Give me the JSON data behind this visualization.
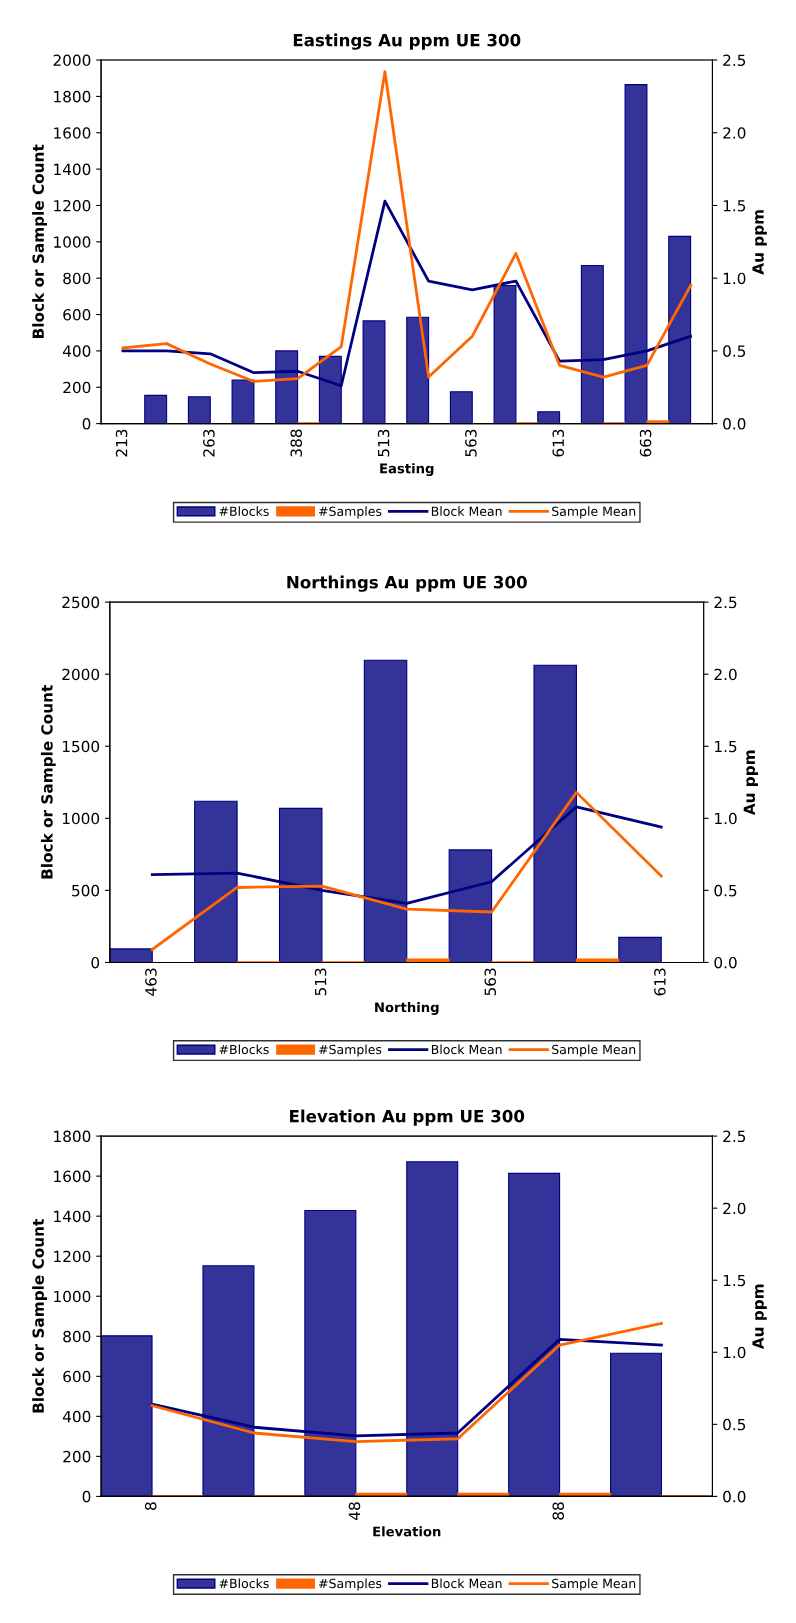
{
  "chart_data": [
    {
      "type": "bar",
      "title": "Eastings Au ppm UE 300",
      "xlabel": "Easting",
      "ylabel": "Block or Sample Count",
      "y2label": "Au ppm",
      "categories": [
        "213",
        null,
        "263",
        null,
        "388",
        null,
        "513",
        null,
        "563",
        null,
        "613",
        null,
        "663",
        null
      ],
      "series": [
        {
          "name": "#Blocks",
          "color": "#333399",
          "values": [
            null,
            155,
            148,
            240,
            400,
            370,
            565,
            585,
            175,
            760,
            65,
            870,
            1865,
            1030
          ]
        },
        {
          "name": "#Samples",
          "color": "#ff6600",
          "values": [
            0,
            0,
            0,
            0,
            5,
            0,
            0,
            0,
            0,
            5,
            0,
            5,
            15,
            null
          ]
        },
        {
          "name": "Block Mean",
          "type": "line",
          "axis": "y2",
          "color": "#000080",
          "values": [
            0.5,
            0.5,
            0.48,
            0.35,
            0.36,
            0.26,
            1.53,
            0.98,
            0.92,
            0.98,
            0.43,
            0.44,
            0.5,
            0.6
          ]
        },
        {
          "name": "Sample Mean",
          "type": "line",
          "axis": "y2",
          "color": "#ff6600",
          "values": [
            0.52,
            0.55,
            0.41,
            0.29,
            0.31,
            0.53,
            2.42,
            0.32,
            0.6,
            1.17,
            0.4,
            0.32,
            0.4,
            0.95
          ]
        }
      ],
      "ylim": [
        0,
        2000
      ],
      "yticks": [
        0,
        200,
        400,
        600,
        800,
        1000,
        1200,
        1400,
        1600,
        1800,
        2000
      ],
      "y2lim": [
        0,
        2.5
      ],
      "y2ticks": [
        {
          "value": 0,
          "label": "0.0"
        },
        {
          "value": 0.5,
          "label": "0.5"
        },
        {
          "value": 1,
          "label": "1.0"
        },
        {
          "value": 1.5,
          "label": "1.5"
        },
        {
          "value": 2,
          "label": "2.0"
        },
        {
          "value": 2.5,
          "label": "2.5"
        }
      ],
      "legend": "bottom",
      "grid": false
    },
    {
      "type": "bar",
      "title": "Northings Au ppm UE 300",
      "xlabel": "Northing",
      "ylabel": "Block or Sample Count",
      "y2label": "Au ppm",
      "categories": [
        "463",
        null,
        "513",
        null,
        "563",
        null,
        "613"
      ],
      "series": [
        {
          "name": "#Blocks",
          "color": "#333399",
          "values": [
            94,
            1118,
            1069,
            2097,
            781,
            2062,
            174
          ]
        },
        {
          "name": "#Samples",
          "color": "#ff6600",
          "values": [
            0,
            5,
            5,
            24,
            5,
            24,
            0
          ]
        },
        {
          "name": "Block Mean",
          "type": "line",
          "axis": "y2",
          "color": "#000080",
          "values": [
            0.61,
            0.62,
            0.5,
            0.41,
            0.56,
            1.08,
            0.94
          ]
        },
        {
          "name": "Sample Mean",
          "type": "line",
          "axis": "y2",
          "color": "#ff6600",
          "values": [
            0.09,
            0.52,
            0.53,
            0.37,
            0.35,
            1.18,
            0.6
          ]
        }
      ],
      "ylim": [
        0,
        2500
      ],
      "yticks": [
        0,
        500,
        1000,
        1500,
        2000,
        2500
      ],
      "y2lim": [
        0,
        2.5
      ],
      "y2ticks": [
        {
          "value": 0,
          "label": "0.0"
        },
        {
          "value": 0.5,
          "label": "0.5"
        },
        {
          "value": 1,
          "label": "1.0"
        },
        {
          "value": 1.5,
          "label": "1.5"
        },
        {
          "value": 2,
          "label": "2.0"
        },
        {
          "value": 2.5,
          "label": "2.5"
        }
      ],
      "legend": "bottom",
      "grid": false
    },
    {
      "type": "bar",
      "title": "Elevation Au ppm UE 300",
      "xlabel": "Elevation",
      "ylabel": "Block or Sample Count",
      "y2label": "Au ppm",
      "categories": [
        "8",
        null,
        "48",
        null,
        "88",
        null
      ],
      "series": [
        {
          "name": "#Blocks",
          "color": "#333399",
          "values": [
            802,
            1152,
            1428,
            1672,
            1614,
            715
          ]
        },
        {
          "name": "#Samples",
          "color": "#ff6600",
          "values": [
            3,
            3,
            15,
            15,
            15,
            3
          ]
        },
        {
          "name": "Block Mean",
          "type": "line",
          "axis": "y2",
          "color": "#000080",
          "values": [
            0.64,
            0.48,
            0.42,
            0.44,
            1.09,
            1.05
          ]
        },
        {
          "name": "Sample Mean",
          "type": "line",
          "axis": "y2",
          "color": "#ff6600",
          "values": [
            0.63,
            0.44,
            0.38,
            0.4,
            1.05,
            1.2
          ]
        }
      ],
      "ylim": [
        0,
        1800
      ],
      "yticks": [
        0,
        200,
        400,
        600,
        800,
        1000,
        1200,
        1400,
        1600,
        1800
      ],
      "y2lim": [
        0,
        2.5
      ],
      "y2ticks": [
        {
          "value": 0,
          "label": "0.0"
        },
        {
          "value": 0.5,
          "label": "0.5"
        },
        {
          "value": 1,
          "label": "1.0"
        },
        {
          "value": 1.5,
          "label": "1.5"
        },
        {
          "value": 2,
          "label": "2.0"
        },
        {
          "value": 2.5,
          "label": "2.5"
        }
      ],
      "legend": "bottom",
      "grid": false
    }
  ]
}
